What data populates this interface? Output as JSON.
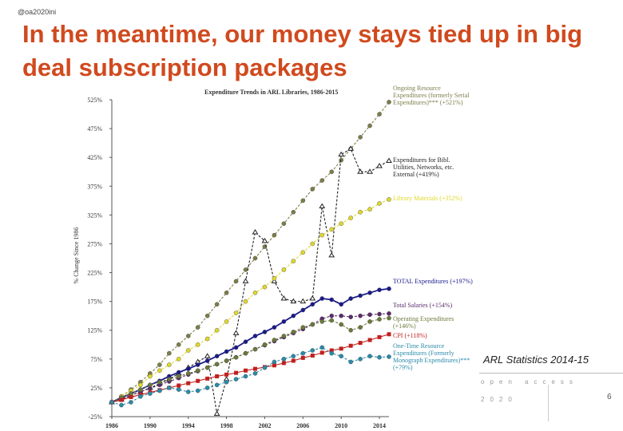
{
  "slide": {
    "handle": "@oa2020ini",
    "title": "In the meantime, our money stays tied up in big deal subscription packages",
    "caption": "ARL Statistics 2014-15",
    "logo_top": "open access",
    "logo_bottom": "2020",
    "page": "6"
  },
  "chart_data": {
    "type": "line",
    "title": "Expenditure Trends in ARL Libraries, 1986-2015",
    "ylabel": "% Change Since 1986",
    "x": [
      1986,
      1987,
      1988,
      1989,
      1990,
      1991,
      1992,
      1993,
      1994,
      1995,
      1996,
      1997,
      1998,
      1999,
      2000,
      2001,
      2002,
      2003,
      2004,
      2005,
      2006,
      2007,
      2008,
      2009,
      2010,
      2011,
      2012,
      2013,
      2014,
      2015
    ],
    "xlim": [
      1986,
      2015
    ],
    "xticks": [
      1986,
      1990,
      1994,
      1998,
      2002,
      2006,
      2010,
      2014
    ],
    "ylim": [
      -25,
      525
    ],
    "yticks": [
      {
        "value": -25,
        "label": "-25%"
      },
      {
        "value": 25,
        "label": "25%"
      },
      {
        "value": 75,
        "label": "75%"
      },
      {
        "value": 125,
        "label": "125%"
      },
      {
        "value": 175,
        "label": "175%"
      },
      {
        "value": 225,
        "label": "225%"
      },
      {
        "value": 275,
        "label": "275%"
      },
      {
        "value": 325,
        "label": "325%"
      },
      {
        "value": 375,
        "label": "375%"
      },
      {
        "value": 425,
        "label": "425%"
      },
      {
        "value": 475,
        "label": "475%"
      },
      {
        "value": 525,
        "label": "525%"
      }
    ],
    "series": [
      {
        "name": "Ongoing Resource Expenditures (formerly Serial Expenditures)*** (+521%)",
        "color": "#7d7d4a",
        "values": [
          0,
          10,
          22,
          35,
          50,
          65,
          85,
          100,
          115,
          130,
          150,
          170,
          190,
          210,
          230,
          250,
          270,
          290,
          310,
          330,
          350,
          370,
          385,
          400,
          420,
          440,
          460,
          480,
          500,
          521
        ]
      },
      {
        "name": "Expenditures for Bibl. Utilities, Networks, etc. External (+419%)",
        "color": "#222222",
        "values": [
          0,
          5,
          12,
          18,
          25,
          32,
          40,
          50,
          60,
          70,
          80,
          -20,
          40,
          120,
          210,
          295,
          280,
          210,
          180,
          175,
          175,
          180,
          340,
          255,
          430,
          440,
          400,
          400,
          410,
          419
        ]
      },
      {
        "name": "Library Materials (+352%)",
        "color": "#e0d82a",
        "values": [
          0,
          10,
          20,
          30,
          45,
          55,
          65,
          75,
          90,
          100,
          110,
          125,
          140,
          155,
          175,
          190,
          200,
          215,
          230,
          245,
          260,
          275,
          290,
          300,
          310,
          320,
          330,
          335,
          345,
          352
        ]
      },
      {
        "name": "TOTAL Expenditures (+197%)",
        "color": "#1a1a8c",
        "values": [
          0,
          8,
          15,
          22,
          30,
          37,
          45,
          52,
          58,
          65,
          72,
          80,
          88,
          95,
          105,
          115,
          122,
          130,
          140,
          150,
          160,
          170,
          180,
          178,
          170,
          180,
          185,
          190,
          195,
          197
        ]
      },
      {
        "name": "Total Salaries (+154%)",
        "color": "#5a2a6a",
        "values": [
          0,
          6,
          12,
          18,
          24,
          30,
          36,
          42,
          48,
          54,
          60,
          66,
          72,
          78,
          85,
          92,
          99,
          106,
          113,
          120,
          127,
          135,
          145,
          150,
          150,
          148,
          150,
          152,
          153,
          154
        ]
      },
      {
        "name": "Operating Expenditures (+146%)",
        "color": "#6b7a3a",
        "values": [
          0,
          8,
          15,
          22,
          30,
          35,
          40,
          45,
          50,
          55,
          60,
          66,
          72,
          78,
          85,
          92,
          100,
          108,
          115,
          122,
          130,
          135,
          140,
          142,
          135,
          125,
          130,
          140,
          144,
          146
        ]
      },
      {
        "name": "CPI (+118%)",
        "color": "#c0201e",
        "values": [
          0,
          4,
          9,
          13,
          17,
          21,
          25,
          29,
          33,
          37,
          41,
          45,
          48,
          51,
          55,
          58,
          61,
          64,
          68,
          72,
          77,
          81,
          86,
          90,
          93,
          98,
          103,
          108,
          113,
          118
        ]
      },
      {
        "name": "One-Time Resource Expenditures (Formerly Monograph Expenditures)*** (+79%)",
        "color": "#2a8aaa",
        "values": [
          0,
          -5,
          0,
          10,
          15,
          20,
          25,
          22,
          18,
          20,
          25,
          30,
          35,
          40,
          45,
          50,
          60,
          70,
          75,
          80,
          85,
          90,
          95,
          85,
          80,
          70,
          75,
          80,
          78,
          79
        ]
      }
    ]
  }
}
